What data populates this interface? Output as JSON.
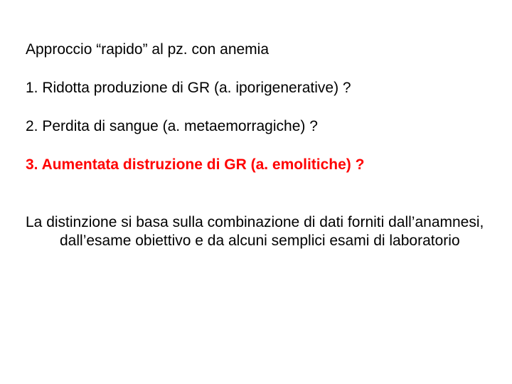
{
  "slide": {
    "background_color": "#ffffff",
    "title": {
      "text": "Approccio “rapido” al pz. con anemia",
      "font_size": 21,
      "color": "#000000",
      "font_family": "Verdana"
    },
    "items": [
      {
        "text": "1. Ridotta produzione di GR (a. iporigenerative) ?",
        "font_size": 21,
        "color": "#000000",
        "bold": false
      },
      {
        "text": "2. Perdita di sangue (a. metaemorragiche) ?",
        "font_size": 21,
        "color": "#000000",
        "bold": false
      },
      {
        "text": "3. Aumentata distruzione di GR (a. emolitiche) ?",
        "font_size": 21,
        "color": "#ff0000",
        "bold": true
      }
    ],
    "paragraph": {
      "text": "La distinzione si basa sulla combinazione di dati forniti dall’anamnesi, dall’esame obiettivo e da alcuni semplici esami di laboratorio",
      "font_size": 21,
      "color": "#000000",
      "font_family": "Verdana"
    }
  }
}
